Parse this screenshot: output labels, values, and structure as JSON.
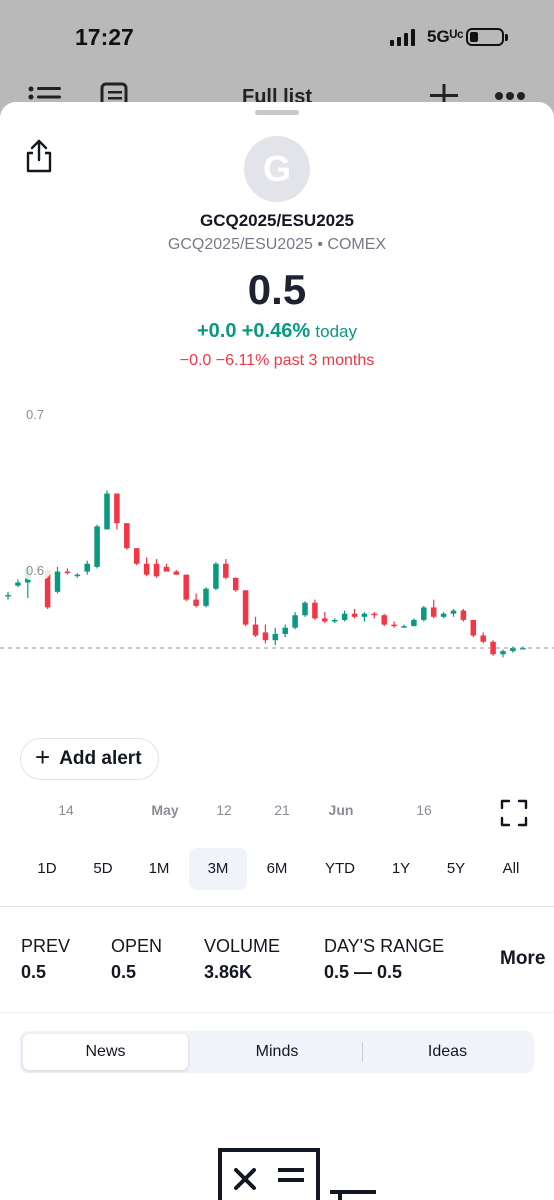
{
  "status_bar": {
    "time": "17:27",
    "network": "5Gᵁᶜ"
  },
  "behind": {
    "title": "Full list"
  },
  "instrument": {
    "avatar_letter": "G",
    "symbol": "GCQ2025/ESU2025",
    "subtitle": "GCQ2025/ESU2025 • COMEX",
    "price": "0.5",
    "change_today_abs": "+0.0",
    "change_today_pct": "+0.46%",
    "change_today_label": "today",
    "change_3m_abs": "−0.0",
    "change_3m_pct": "−6.11%",
    "change_3m_label": "past 3 months",
    "colors": {
      "up": "#089981",
      "down": "#f23645"
    }
  },
  "chart": {
    "y_labels": [
      "0.7",
      "0.6"
    ],
    "x_labels": [
      "14",
      "May",
      "12",
      "21",
      "Jun",
      "16"
    ]
  },
  "chart_data": {
    "type": "candlestick",
    "y_ticks": [
      "0.7",
      "0.6"
    ],
    "x_ticks": [
      "14",
      "May",
      "12",
      "21",
      "Jun",
      "16"
    ],
    "last_price_line": true,
    "grid": false,
    "candles_ohlc": [
      [
        0.584,
        0.586,
        0.581,
        0.584
      ],
      [
        0.59,
        0.594,
        0.589,
        0.592
      ],
      [
        0.592,
        0.604,
        0.582,
        0.601
      ],
      [
        0.601,
        0.604,
        0.599,
        0.6
      ],
      [
        0.6,
        0.602,
        0.575,
        0.576
      ],
      [
        0.586,
        0.602,
        0.585,
        0.599
      ],
      [
        0.599,
        0.601,
        0.597,
        0.598
      ],
      [
        0.597,
        0.598,
        0.595,
        0.597
      ],
      [
        0.599,
        0.606,
        0.597,
        0.604
      ],
      [
        0.602,
        0.629,
        0.601,
        0.628
      ],
      [
        0.626,
        0.651,
        0.626,
        0.649
      ],
      [
        0.649,
        0.644,
        0.626,
        0.63
      ],
      [
        0.63,
        0.612,
        0.613,
        0.614
      ],
      [
        0.614,
        0.611,
        0.603,
        0.604
      ],
      [
        0.604,
        0.608,
        0.596,
        0.597
      ],
      [
        0.604,
        0.607,
        0.595,
        0.596
      ],
      [
        0.602,
        0.604,
        0.599,
        0.599
      ],
      [
        0.599,
        0.6,
        0.597,
        0.597
      ],
      [
        0.597,
        0.59,
        0.58,
        0.581
      ],
      [
        0.581,
        0.585,
        0.576,
        0.577
      ],
      [
        0.577,
        0.589,
        0.576,
        0.588
      ],
      [
        0.588,
        0.605,
        0.587,
        0.604
      ],
      [
        0.604,
        0.607,
        0.594,
        0.595
      ],
      [
        0.595,
        0.59,
        0.586,
        0.587
      ],
      [
        0.587,
        0.577,
        0.564,
        0.565
      ],
      [
        0.565,
        0.57,
        0.557,
        0.558
      ],
      [
        0.56,
        0.565,
        0.553,
        0.555
      ],
      [
        0.555,
        0.563,
        0.552,
        0.559
      ],
      [
        0.559,
        0.565,
        0.557,
        0.563
      ],
      [
        0.563,
        0.573,
        0.562,
        0.571
      ],
      [
        0.571,
        0.58,
        0.57,
        0.579
      ],
      [
        0.579,
        0.581,
        0.568,
        0.569
      ],
      [
        0.569,
        0.573,
        0.566,
        0.567
      ],
      [
        0.567,
        0.569,
        0.566,
        0.568
      ],
      [
        0.568,
        0.574,
        0.567,
        0.572
      ],
      [
        0.572,
        0.575,
        0.569,
        0.57
      ],
      [
        0.57,
        0.573,
        0.567,
        0.572
      ],
      [
        0.572,
        0.573,
        0.569,
        0.571
      ],
      [
        0.571,
        0.572,
        0.564,
        0.565
      ],
      [
        0.565,
        0.567,
        0.563,
        0.564
      ],
      [
        0.564,
        0.565,
        0.563,
        0.564
      ],
      [
        0.564,
        0.569,
        0.564,
        0.568
      ],
      [
        0.568,
        0.577,
        0.567,
        0.576
      ],
      [
        0.576,
        0.581,
        0.569,
        0.57
      ],
      [
        0.57,
        0.573,
        0.569,
        0.572
      ],
      [
        0.572,
        0.575,
        0.57,
        0.574
      ],
      [
        0.574,
        0.575,
        0.567,
        0.568
      ],
      [
        0.568,
        0.566,
        0.557,
        0.558
      ],
      [
        0.558,
        0.56,
        0.553,
        0.554
      ],
      [
        0.554,
        0.555,
        0.545,
        0.546
      ],
      [
        0.546,
        0.549,
        0.544,
        0.548
      ],
      [
        0.548,
        0.551,
        0.547,
        0.55
      ],
      [
        0.55,
        0.551,
        0.549,
        0.55
      ]
    ]
  },
  "actions": {
    "add_alert": "Add alert"
  },
  "ranges": [
    "1D",
    "5D",
    "1M",
    "3M",
    "6M",
    "YTD",
    "1Y",
    "5Y",
    "All"
  ],
  "active_range": "3M",
  "stats": [
    {
      "label": "PREV",
      "value": "0.5"
    },
    {
      "label": "OPEN",
      "value": "0.5"
    },
    {
      "label": "VOLUME",
      "value": "3.86K"
    },
    {
      "label": "DAY'S RANGE",
      "value": "0.5 — 0.5"
    }
  ],
  "more_label": "More",
  "tabs": [
    "News",
    "Minds",
    "Ideas"
  ],
  "active_tab": "News"
}
